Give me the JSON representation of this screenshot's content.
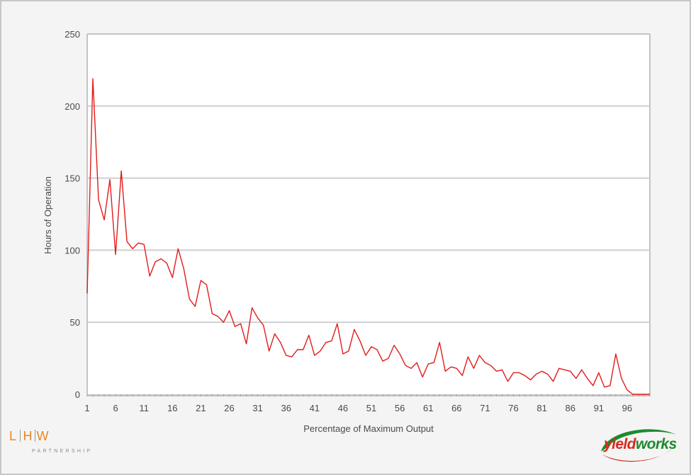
{
  "chart_data": {
    "type": "line",
    "title": "",
    "xlabel": "Percentage of Maximum Output",
    "ylabel": "Hours of Operation",
    "xlim": [
      1,
      100
    ],
    "ylim": [
      0,
      250
    ],
    "y_ticks": [
      "0",
      "50",
      "100",
      "150",
      "200",
      "250"
    ],
    "x_ticks": [
      "1",
      "6",
      "11",
      "16",
      "21",
      "26",
      "31",
      "36",
      "41",
      "46",
      "51",
      "56",
      "61",
      "66",
      "71",
      "76",
      "81",
      "86",
      "91",
      "96"
    ],
    "grid": "horizontal",
    "legend": "none",
    "series": [
      {
        "color": "#e31b1b",
        "x": [
          1,
          2,
          3,
          4,
          5,
          6,
          7,
          8,
          9,
          10,
          11,
          12,
          13,
          14,
          15,
          16,
          17,
          18,
          19,
          20,
          21,
          22,
          23,
          24,
          25,
          26,
          27,
          28,
          29,
          30,
          31,
          32,
          33,
          34,
          35,
          36,
          37,
          38,
          39,
          40,
          41,
          42,
          43,
          44,
          45,
          46,
          47,
          48,
          49,
          50,
          51,
          52,
          53,
          54,
          55,
          56,
          57,
          58,
          59,
          60,
          61,
          62,
          63,
          64,
          65,
          66,
          67,
          68,
          69,
          70,
          71,
          72,
          73,
          74,
          75,
          76,
          77,
          78,
          79,
          80,
          81,
          82,
          83,
          84,
          85,
          86,
          87,
          88,
          89,
          90,
          91,
          92,
          93,
          94,
          95,
          96,
          97,
          98,
          99,
          100
        ],
        "values": [
          70,
          219,
          135,
          121,
          149,
          97,
          155,
          106,
          101,
          105,
          104,
          82,
          92,
          94,
          91,
          81,
          101,
          87,
          66,
          61,
          79,
          76,
          56,
          54,
          50,
          58,
          47,
          49,
          35,
          60,
          53,
          48,
          30,
          42,
          36,
          27,
          26,
          31,
          31,
          41,
          27,
          30,
          36,
          37,
          49,
          28,
          30,
          45,
          37,
          27,
          33,
          31,
          23,
          25,
          34,
          28,
          20,
          18,
          22,
          12,
          21,
          22,
          36,
          16,
          19,
          18,
          13,
          26,
          18,
          27,
          22,
          20,
          16,
          17,
          9,
          15,
          15,
          13,
          10,
          14,
          16,
          14,
          9,
          18,
          17,
          16,
          11,
          17,
          11,
          6,
          15,
          5,
          6,
          28,
          11,
          3,
          0,
          0,
          0,
          0
        ]
      }
    ]
  },
  "logos": {
    "lhw": {
      "letters": [
        "L",
        "H",
        "W"
      ],
      "subtitle": "PARTNERSHIP",
      "color": "#e8891f"
    },
    "yieldworks": {
      "part1": "yield",
      "part2": "works",
      "red": "#d62b1f",
      "green": "#1d8a2e"
    }
  }
}
